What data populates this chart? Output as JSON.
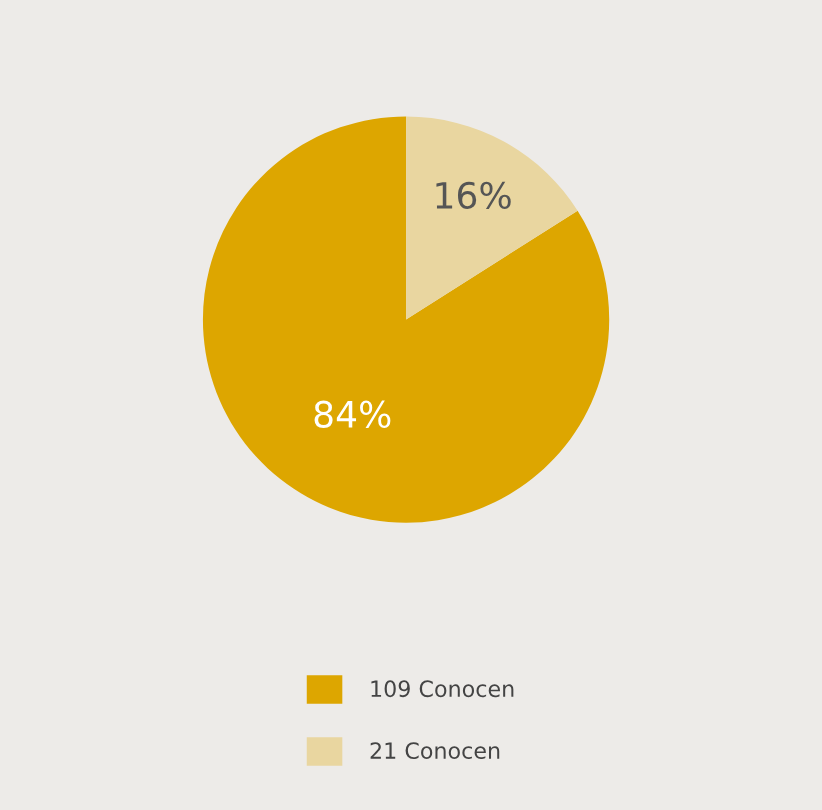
{
  "chart_data": {
    "type": "pie",
    "categories": [
      "109 Conocen",
      "21 Conocen"
    ],
    "values": [
      84,
      16
    ],
    "colors": [
      "#dda600",
      "#e9d6a0"
    ],
    "value_labels": [
      "84%",
      "16%"
    ],
    "legend": "bottom"
  }
}
